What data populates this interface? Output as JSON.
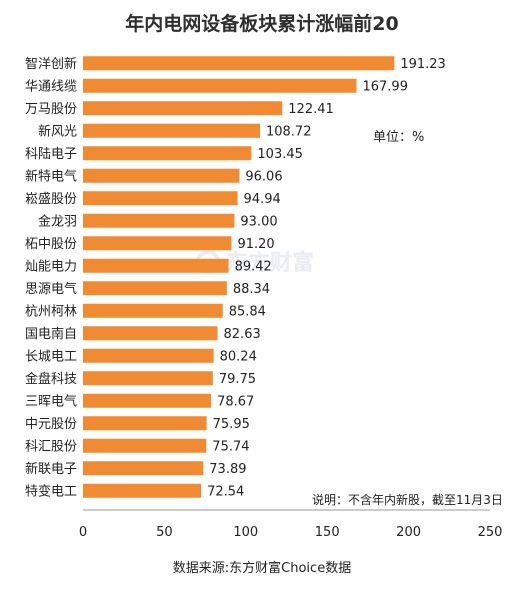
{
  "chart_data": {
    "type": "bar",
    "orientation": "horizontal",
    "title": "年内电网设备板块累计涨幅前20",
    "categories": [
      "智洋创新",
      "华通线缆",
      "万马股份",
      "新风光",
      "科陆电子",
      "新特电气",
      "崧盛股份",
      "金龙羽",
      "柘中股份",
      "灿能电力",
      "思源电气",
      "杭州柯林",
      "国电南自",
      "长城电工",
      "金盘科技",
      "三晖电气",
      "中元股份",
      "科汇股份",
      "新联电子",
      "特变电工"
    ],
    "values": [
      191.23,
      167.99,
      122.41,
      108.72,
      103.45,
      96.06,
      94.94,
      93.0,
      91.2,
      89.42,
      88.34,
      85.84,
      82.63,
      80.24,
      79.75,
      78.67,
      75.95,
      75.74,
      73.89,
      72.54
    ],
    "value_labels": [
      "191.23",
      "167.99",
      "122.41",
      "108.72",
      "103.45",
      "96.06",
      "94.94",
      "93.00",
      "91.20",
      "89.42",
      "88.34",
      "85.84",
      "82.63",
      "80.24",
      "79.75",
      "78.67",
      "75.95",
      "75.74",
      "73.89",
      "72.54"
    ],
    "xlim": [
      0,
      250
    ],
    "xticks": [
      "0",
      "50",
      "100",
      "150",
      "200",
      "250"
    ],
    "xtick_values": [
      0,
      50,
      100,
      150,
      200,
      250
    ],
    "unit_label": "单位：%",
    "note": "说明：不含年内新股，截至11月3日",
    "source": "数据来源:东方财富Choice数据",
    "watermark": "东方财富",
    "grid": false,
    "legend": "none",
    "bar_color": "#f08a33"
  }
}
